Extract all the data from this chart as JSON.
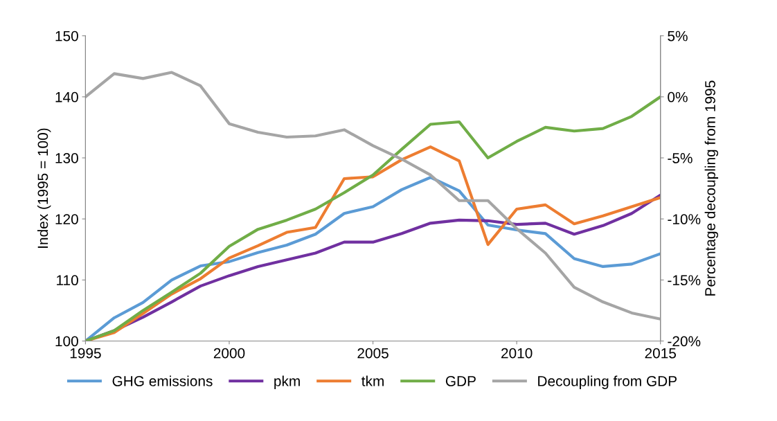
{
  "chart_data": {
    "type": "line",
    "ylabel": "Index (1995 = 100)",
    "y2label": "Percentage decoupling from 1995",
    "x": [
      1995,
      1996,
      1997,
      1998,
      1999,
      2000,
      2001,
      2002,
      2003,
      2004,
      2005,
      2006,
      2007,
      2008,
      2009,
      2010,
      2011,
      2012,
      2013,
      2014,
      2015
    ],
    "xlim": [
      1995,
      2015
    ],
    "xticks": [
      1995,
      2000,
      2005,
      2010,
      2015
    ],
    "ylim": [
      100,
      150
    ],
    "yticks": [
      100,
      110,
      120,
      130,
      140,
      150
    ],
    "y2lim": [
      -20,
      5
    ],
    "y2ticks": [
      {
        "value": -20,
        "label": "-20%"
      },
      {
        "value": -15,
        "label": "-15%"
      },
      {
        "value": -10,
        "label": "-10%"
      },
      {
        "value": -5,
        "label": "-5%"
      },
      {
        "value": 0,
        "label": "0%"
      },
      {
        "value": 5,
        "label": "5%"
      }
    ],
    "grid": false,
    "legend": "bottom",
    "marker": "none",
    "line_style": "solid",
    "series": [
      {
        "name": "GHG emissions",
        "color": "#5b9bd5",
        "values": [
          100,
          103.8,
          106.3,
          110,
          112.3,
          113,
          114.5,
          115.7,
          117.5,
          120.9,
          122,
          124.8,
          126.8,
          124.6,
          119,
          118.2,
          117.6,
          113.5,
          112.2,
          112.6,
          114.3
        ]
      },
      {
        "name": "pkm",
        "color": "#7030a0",
        "values": [
          100,
          101.7,
          103.9,
          106.4,
          109,
          110.7,
          112.2,
          113.3,
          114.4,
          116.2,
          116.2,
          117.6,
          119.3,
          119.8,
          119.7,
          119.1,
          119.3,
          117.5,
          118.9,
          120.9,
          123.9
        ]
      },
      {
        "name": "tkm",
        "color": "#ed7d31",
        "values": [
          100,
          101.4,
          104.5,
          107.7,
          110.2,
          113.6,
          115.6,
          117.8,
          118.6,
          126.6,
          126.9,
          129.7,
          131.8,
          129.5,
          115.8,
          121.6,
          122.3,
          119.2,
          120.5,
          122,
          123.5
        ]
      },
      {
        "name": "GDP",
        "color": "#70ad47",
        "values": [
          100,
          101.7,
          105,
          108,
          111.1,
          115.5,
          118.3,
          119.8,
          121.6,
          124.3,
          127.2,
          131.4,
          135.5,
          135.9,
          130,
          132.7,
          135,
          134.4,
          134.8,
          136.8,
          140
        ]
      },
      {
        "name": "Decoupling from GDP",
        "color": "#a5a5a5",
        "axis": "y2",
        "values": [
          0,
          1.9,
          1.5,
          2,
          0.9,
          -2.2,
          -2.9,
          -3.3,
          -3.2,
          -2.7,
          -4,
          -5.1,
          -6.4,
          -8.5,
          -8.5,
          -10.8,
          -12.8,
          -15.6,
          -16.8,
          -17.7,
          -18.2
        ]
      }
    ]
  }
}
